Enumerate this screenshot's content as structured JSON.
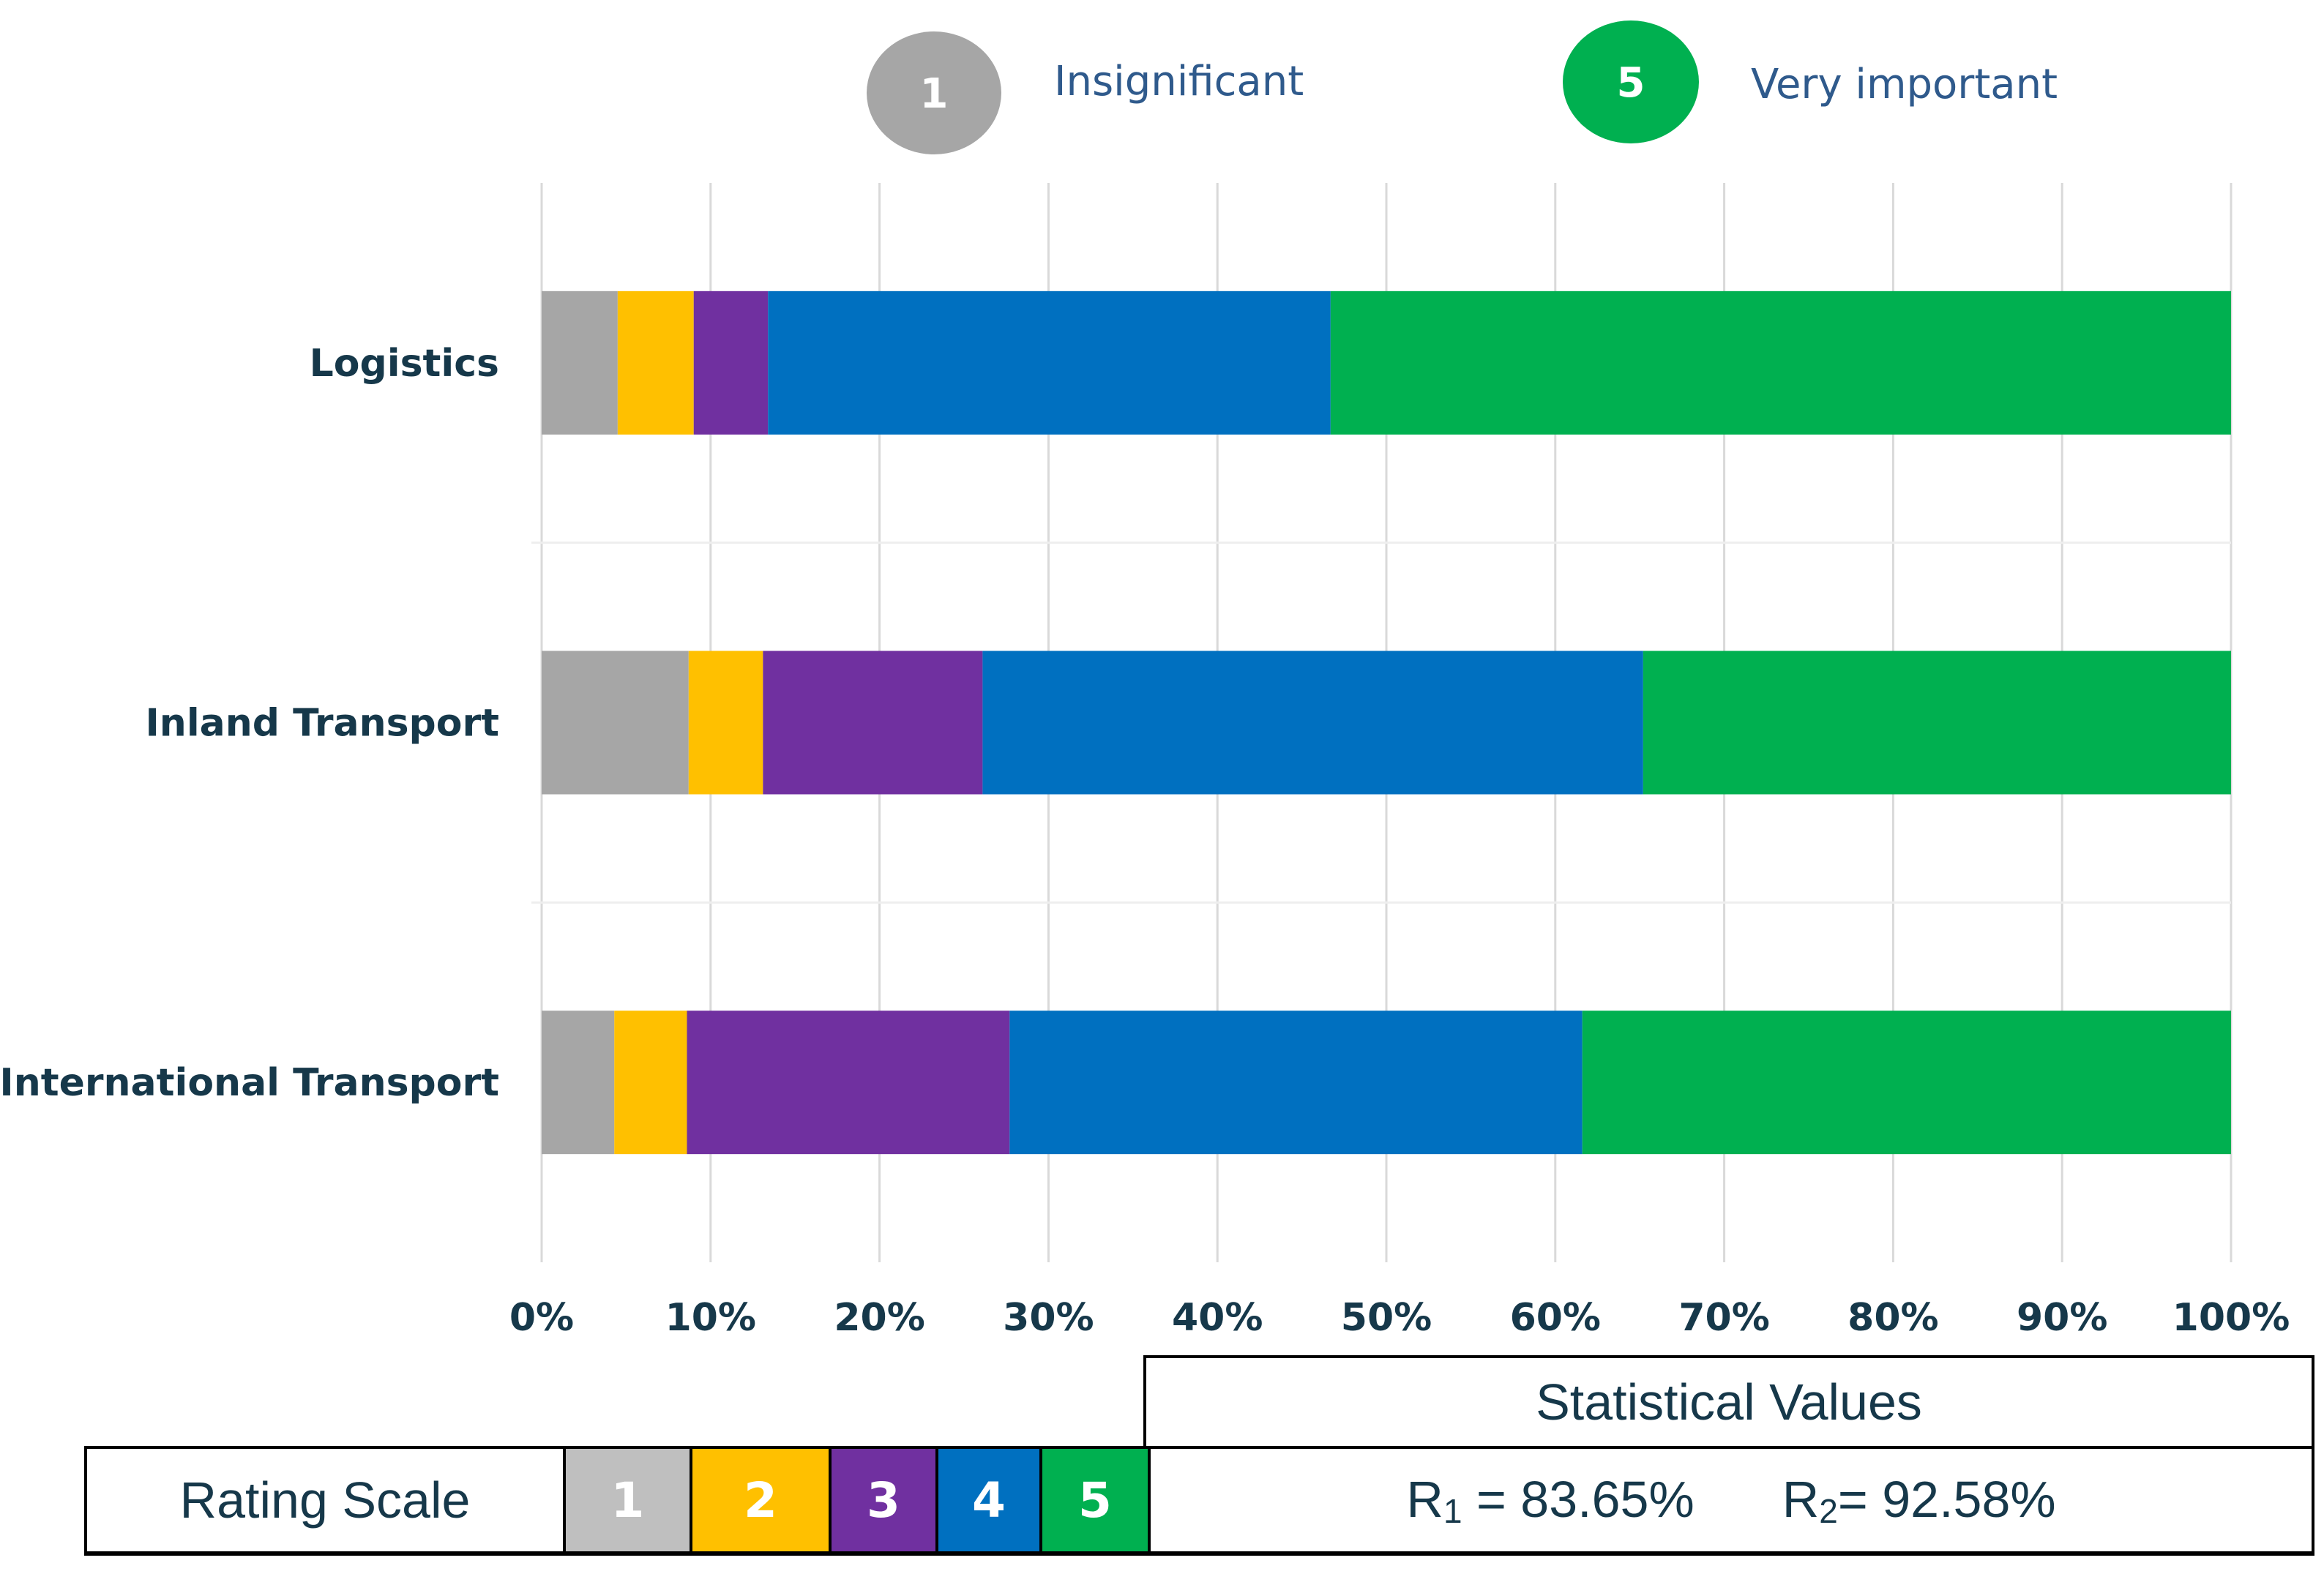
{
  "legend": {
    "low": {
      "number": "1",
      "label": "Insignificant",
      "color": "#a6a6a6"
    },
    "high": {
      "number": "5",
      "label": "Very important",
      "color": "#00b050"
    }
  },
  "chart_data": {
    "type": "bar",
    "orientation": "horizontal",
    "stacked": true,
    "xlim": [
      0,
      100
    ],
    "grid": true,
    "tick_labels": [
      "0%",
      "10%",
      "20%",
      "30%",
      "40%",
      "50%",
      "60%",
      "70%",
      "80%",
      "90%",
      "100%"
    ],
    "categories": [
      "Logistics",
      "Inland Transport",
      "International Transport"
    ],
    "series": [
      {
        "name": "1",
        "color": "#a6a6a6",
        "values": [
          4.5,
          8.7,
          4.3
        ]
      },
      {
        "name": "2",
        "color": "#ffc000",
        "values": [
          4.5,
          4.4,
          4.3
        ]
      },
      {
        "name": "3",
        "color": "#7030a0",
        "values": [
          4.4,
          13.0,
          19.1
        ]
      },
      {
        "name": "4",
        "color": "#0070c0",
        "values": [
          33.3,
          39.1,
          33.9
        ]
      },
      {
        "name": "5",
        "color": "#00b050",
        "values": [
          53.3,
          34.8,
          38.4
        ]
      }
    ]
  },
  "table": {
    "stat_header": "Statistical Values",
    "rating_title": "Rating Scale",
    "scale": [
      {
        "label": "1",
        "color": "#bfbfbf"
      },
      {
        "label": "2",
        "color": "#ffc000"
      },
      {
        "label": "3",
        "color": "#7030a0"
      },
      {
        "label": "4",
        "color": "#0070c0"
      },
      {
        "label": "5",
        "color": "#00b050"
      }
    ],
    "r1": {
      "symbol": "R",
      "sub": "1",
      "text": " = 83.65%"
    },
    "r2": {
      "symbol": "R",
      "sub": "2",
      "text": "= 92.58%"
    }
  }
}
